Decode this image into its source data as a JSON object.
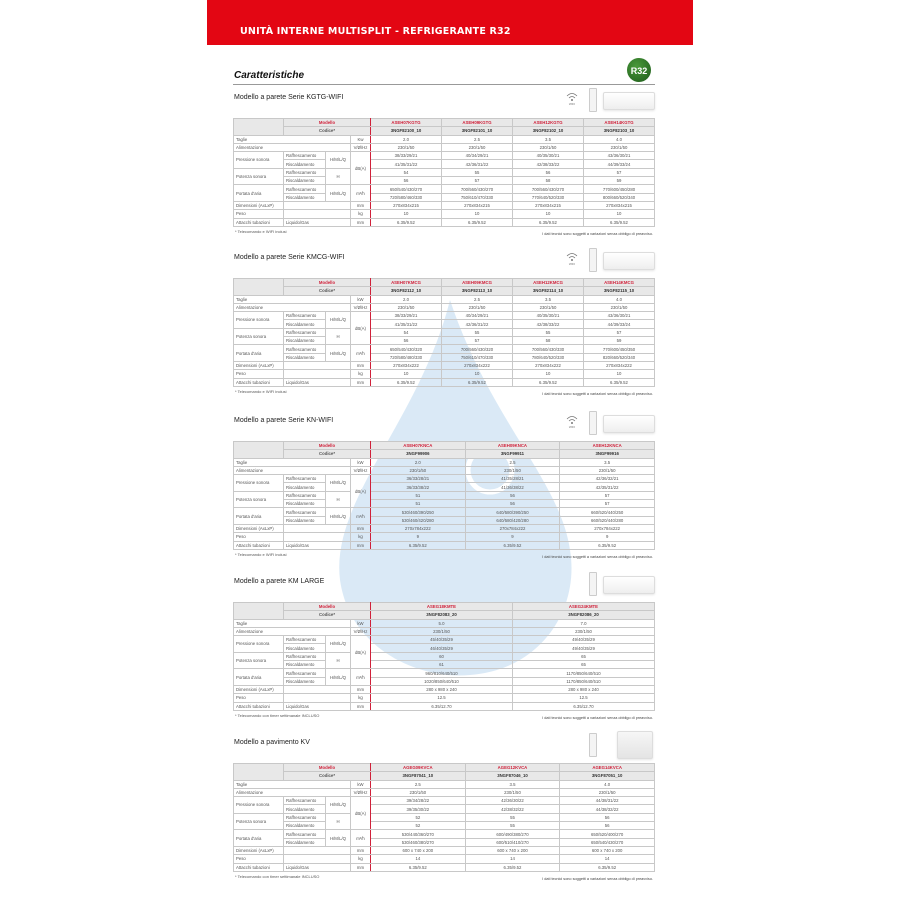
{
  "header": {
    "title": "UNITÀ INTERNE MULTISPLIT - REFRIGERANTE R32",
    "badge": "R32",
    "section": "Caratteristiche"
  },
  "labels": {
    "modello": "Modello",
    "codice": "Codice*",
    "taglie": "Taglie",
    "alimentazione": "Alimentazione",
    "pressione": "Pressione sonora",
    "potenza": "Potenza sonora",
    "portata": "Portata d'aria",
    "raff": "Raffrescamento",
    "risc": "Riscaldamento",
    "hmlq": "H/M/L/Q",
    "h": "H",
    "dimensioni": "Dimensioni (AxLxP)",
    "peso": "Peso",
    "attacchi": "Attacchi tubazioni",
    "liquido": "Liquido/Gas",
    "u_v": "V/Ø/Hz",
    "u_db": "dB(A)",
    "u_m3": "m³/h",
    "u_mm": "mm",
    "u_kg": "kg"
  },
  "disclaimer": "I dati tecnici sono soggetti a variazioni senza obbligo di preavviso.",
  "colors": {
    "brand_red": "#e30613",
    "model_red": "#d0213a",
    "header_gray": "#e8e8e8"
  },
  "sections": [
    {
      "title": "Modello a parete Serie KGTG-WIFI",
      "pictures": [
        "wifi-icon",
        "remote-control",
        "wall-unit"
      ],
      "unit_kw": "Kw",
      "models": [
        "ASEH07KGTG",
        "ASEH09KGTG",
        "ASEH12KGTG",
        "ASEH14KGTG"
      ],
      "codes": [
        "3NGF82100_10",
        "3NGF82101_10",
        "3NGF82102_10",
        "3NGF82103_10"
      ],
      "taglie": [
        "2.0",
        "2.5",
        "3.5",
        "4.0"
      ],
      "alimentazione": [
        "230/1/50",
        "230/1/50",
        "230/1/50",
        "230/1/50"
      ],
      "pressione_raff": [
        "38/33/29/21",
        "40/34/29/21",
        "40/35/30/21",
        "43/36/30/21"
      ],
      "pressione_risc": [
        "41/35/31/22",
        "42/36/31/22",
        "42/38/33/22",
        "44/39/33/24"
      ],
      "potenza_raff": [
        "54",
        "55",
        "56",
        "57"
      ],
      "potenza_risc": [
        "56",
        "57",
        "58",
        "59"
      ],
      "portata_raff": [
        "650/540/430/270",
        "700/560/430/270",
        "700/560/430/270",
        "770/600/450/280"
      ],
      "portata_risc": [
        "720/580/460/330",
        "750/610/470/330",
        "770/640/520/330",
        "800/660/520/340"
      ],
      "dimensioni": [
        "270x834x215",
        "270x834x215",
        "270x834x215",
        "270x834x215"
      ],
      "peso": [
        "10",
        "10",
        "10",
        "10"
      ],
      "attacchi": [
        "6.35/9.52",
        "6.35/9.52",
        "6.35/9.52",
        "6.35/9.52"
      ],
      "footnote": "* Telecomando e WIFI inclusi"
    },
    {
      "title": "Modello a parete Serie KMCG-WIFI",
      "pictures": [
        "wifi-icon",
        "remote-control",
        "wall-unit"
      ],
      "unit_kw": "kW",
      "models": [
        "ASEH07KMCG",
        "ASEH09KMCG",
        "ASEH12KMCG",
        "ASEH14KMCG"
      ],
      "codes": [
        "3NGF82112_10",
        "3NGF82113_10",
        "3NGF82114_10",
        "3NGF82115_10"
      ],
      "taglie": [
        "2.0",
        "2.5",
        "3.5",
        "4.0"
      ],
      "alimentazione": [
        "230/1/50",
        "230/1/50",
        "230/1/50",
        "230/1/50"
      ],
      "pressione_raff": [
        "38/33/29/21",
        "40/34/29/21",
        "40/35/30/21",
        "43/36/30/21"
      ],
      "pressione_risc": [
        "41/35/31/22",
        "42/36/31/22",
        "42/38/33/22",
        "44/39/33/24"
      ],
      "potenza_raff": [
        "54",
        "55",
        "55",
        "57"
      ],
      "potenza_risc": [
        "56",
        "57",
        "58",
        "59"
      ],
      "portata_raff": [
        "650/540/430/320",
        "700/560/430/320",
        "700/560/430/330",
        "770/600/450/350"
      ],
      "portata_risc": [
        "720/580/480/330",
        "750/610/470/330",
        "780/640/520/330",
        "820/660/520/340"
      ],
      "dimensioni": [
        "270x834x222",
        "270x834x222",
        "270x834x222",
        "270x834x222"
      ],
      "peso": [
        "10",
        "10",
        "10",
        "10"
      ],
      "attacchi": [
        "6.35/9.52",
        "6.35/9.52",
        "6.35/9.52",
        "6.35/9.52"
      ],
      "footnote": "* Telecomando e WIFI inclusi"
    },
    {
      "title": "Modello a parete Serie KN-WIFI",
      "pictures": [
        "wifi-icon",
        "remote-control",
        "wall-unit"
      ],
      "unit_kw": "kW",
      "models": [
        "ASEH07KNCA",
        "ASEH09KNCA",
        "ASEH12KNCA"
      ],
      "codes": [
        "3NGF99906",
        "3NGF99911",
        "3NGF99916"
      ],
      "taglie": [
        "2.0",
        "2.5",
        "3.5"
      ],
      "alimentazione": [
        "230/1/50",
        "230/1/50",
        "230/1/50"
      ],
      "pressione_raff": [
        "36/33/28/21",
        "41/35/28/21",
        "42/36/32/21"
      ],
      "pressione_risc": [
        "36/33/38/22",
        "41/36/38/22",
        "42/35/31/22"
      ],
      "potenza_raff": [
        "51",
        "56",
        "57"
      ],
      "potenza_risc": [
        "51",
        "56",
        "57"
      ],
      "portata_raff": [
        "530/460/390/250",
        "640/580/390/250",
        "660/520/440/250"
      ],
      "portata_risc": [
        "530/460/420/280",
        "640/580/420/280",
        "660/520/440/280"
      ],
      "dimensioni": [
        "270x784x222",
        "270x784x222",
        "270x784x222"
      ],
      "peso": [
        "9",
        "9",
        "9"
      ],
      "attacchi": [
        "6.35/9.52",
        "6.35/9.52",
        "6.35/9.52"
      ],
      "footnote": "* Telecomando e WIFI inclusi"
    },
    {
      "title": "Modello a parete KM LARGE",
      "pictures": [
        "remote-control",
        "wall-unit"
      ],
      "unit_kw": "kW",
      "models": [
        "ASEG18KMTE",
        "ASEG24KMTE"
      ],
      "codes": [
        "3NGF82083_20",
        "3NGF82086_20"
      ],
      "taglie": [
        "5.0",
        "7.0"
      ],
      "alimentazione": [
        "230/1/50",
        "230/1/50"
      ],
      "pressione_raff": [
        "45/40/35/29",
        "49/40/35/29"
      ],
      "pressione_risc": [
        "46/40/35/29",
        "49/40/35/29"
      ],
      "potenza_raff": [
        "60",
        "65"
      ],
      "potenza_risc": [
        "61",
        "65"
      ],
      "portata_raff": [
        "960/810/640/510",
        "1170/850/640/510"
      ],
      "portata_risc": [
        "1020/850/640/510",
        "1170/850/640/510"
      ],
      "dimensioni": [
        "280 x 980 x 240",
        "280 x 980 x 240"
      ],
      "peso": [
        "12.5",
        "12.5"
      ],
      "attacchi": [
        "6.35/12.70",
        "6.35/12.70"
      ],
      "footnote": "* Telecomando con timer settimanale INCLUSO"
    },
    {
      "title": "Modello a pavimento KV",
      "pictures": [
        "remote-control",
        "floor-unit"
      ],
      "unit_kw": "kW",
      "models": [
        "AGEG09KVCA",
        "AGEG12KVCA",
        "AGEG14KVCA"
      ],
      "codes": [
        "3NGF87041_10",
        "3NGF87046_10",
        "3NGF87051_10"
      ],
      "taglie": [
        "2.5",
        "3.5",
        "4.0"
      ],
      "alimentazione": [
        "230/1/50",
        "230/1/50",
        "230/1/50"
      ],
      "pressione_raff": [
        "39/34/28/22",
        "42/36/30/22",
        "44/38/31/22"
      ],
      "pressione_risc": [
        "39/35/30/22",
        "42/38/32/22",
        "44/38/32/22"
      ],
      "potenza_raff": [
        "52",
        "55",
        "56"
      ],
      "potenza_risc": [
        "52",
        "55",
        "56"
      ],
      "portata_raff": [
        "530/440/360/270",
        "600/490/380/270",
        "650/520/400/270"
      ],
      "portata_risc": [
        "530/460/380/270",
        "600/510/410/270",
        "650/540/430/270"
      ],
      "dimensioni": [
        "600 x 740 x 200",
        "600 x 740 x 200",
        "600 x 740 x 200"
      ],
      "peso": [
        "14",
        "14",
        "14"
      ],
      "attacchi": [
        "6.35/9.52",
        "6.35/9.52",
        "6.35/9.52"
      ],
      "footnote": "* Telecomando con timer settimanale INCLUSO"
    }
  ]
}
